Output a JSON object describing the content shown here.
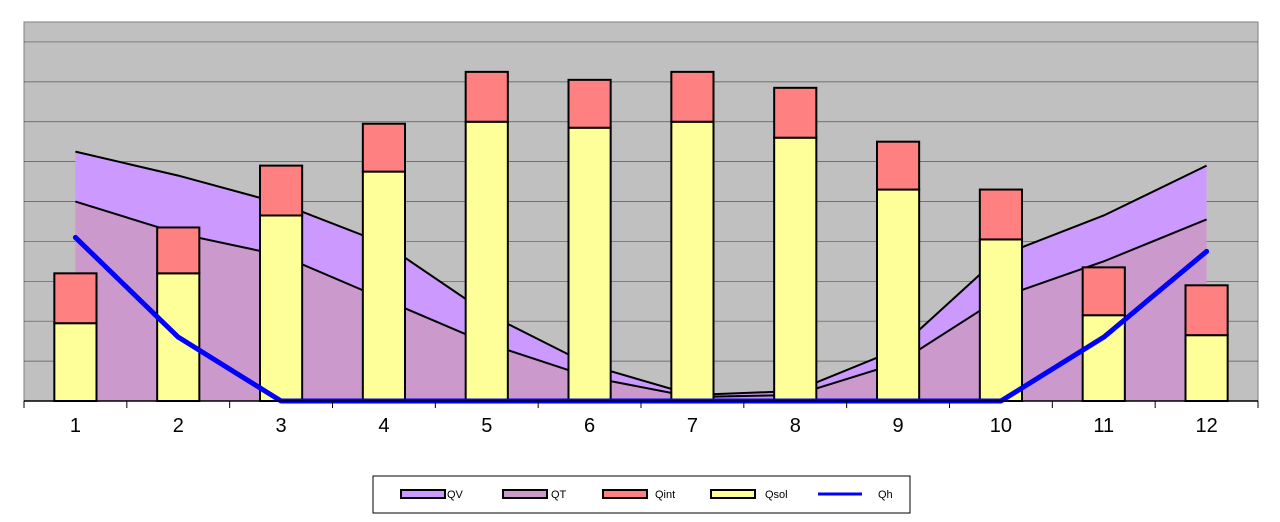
{
  "chart_data": {
    "type": "bar",
    "categories": [
      "1",
      "2",
      "3",
      "4",
      "5",
      "6",
      "7",
      "8",
      "9",
      "10",
      "11",
      "12"
    ],
    "ylim": [
      0,
      9.5
    ],
    "grid": true,
    "legend_position": "bottom",
    "colors": {
      "plot_background": "#c0c0c0",
      "QV": "#cc99ff",
      "QT": "#cc99cc",
      "Qint": "#ff8080",
      "Qsol": "#ffff99",
      "Qh": "#0000ff",
      "outline": "#000000",
      "gridline": "#000000"
    },
    "series": [
      {
        "name": "QV",
        "type": "area",
        "stacked_on": "QT",
        "values": [
          1.25,
          1.45,
          1.3,
          1.4,
          0.75,
          0.3,
          0.05,
          0.1,
          0.35,
          1.05,
          1.15,
          1.35
        ]
      },
      {
        "name": "QT",
        "type": "area",
        "values": [
          5.0,
          4.2,
          3.65,
          2.55,
          1.45,
          0.6,
          0.1,
          0.15,
          0.95,
          2.6,
          3.5,
          4.55
        ]
      },
      {
        "name": "Qint",
        "type": "bar",
        "stacked_on": "Qsol",
        "values": [
          1.25,
          1.15,
          1.25,
          1.2,
          1.25,
          1.2,
          1.25,
          1.25,
          1.2,
          1.25,
          1.2,
          1.25
        ]
      },
      {
        "name": "Qsol",
        "type": "bar",
        "values": [
          1.95,
          3.2,
          4.65,
          5.75,
          7.0,
          6.85,
          7.0,
          6.6,
          5.3,
          4.05,
          2.15,
          1.65
        ]
      },
      {
        "name": "Qh",
        "type": "line",
        "values": [
          4.1,
          1.6,
          0.0,
          0.0,
          0.0,
          0.0,
          0.0,
          0.0,
          0.0,
          0.0,
          1.6,
          3.75
        ]
      }
    ],
    "legend_order": [
      "QV",
      "QT",
      "Qint",
      "Qsol",
      "Qh"
    ]
  }
}
